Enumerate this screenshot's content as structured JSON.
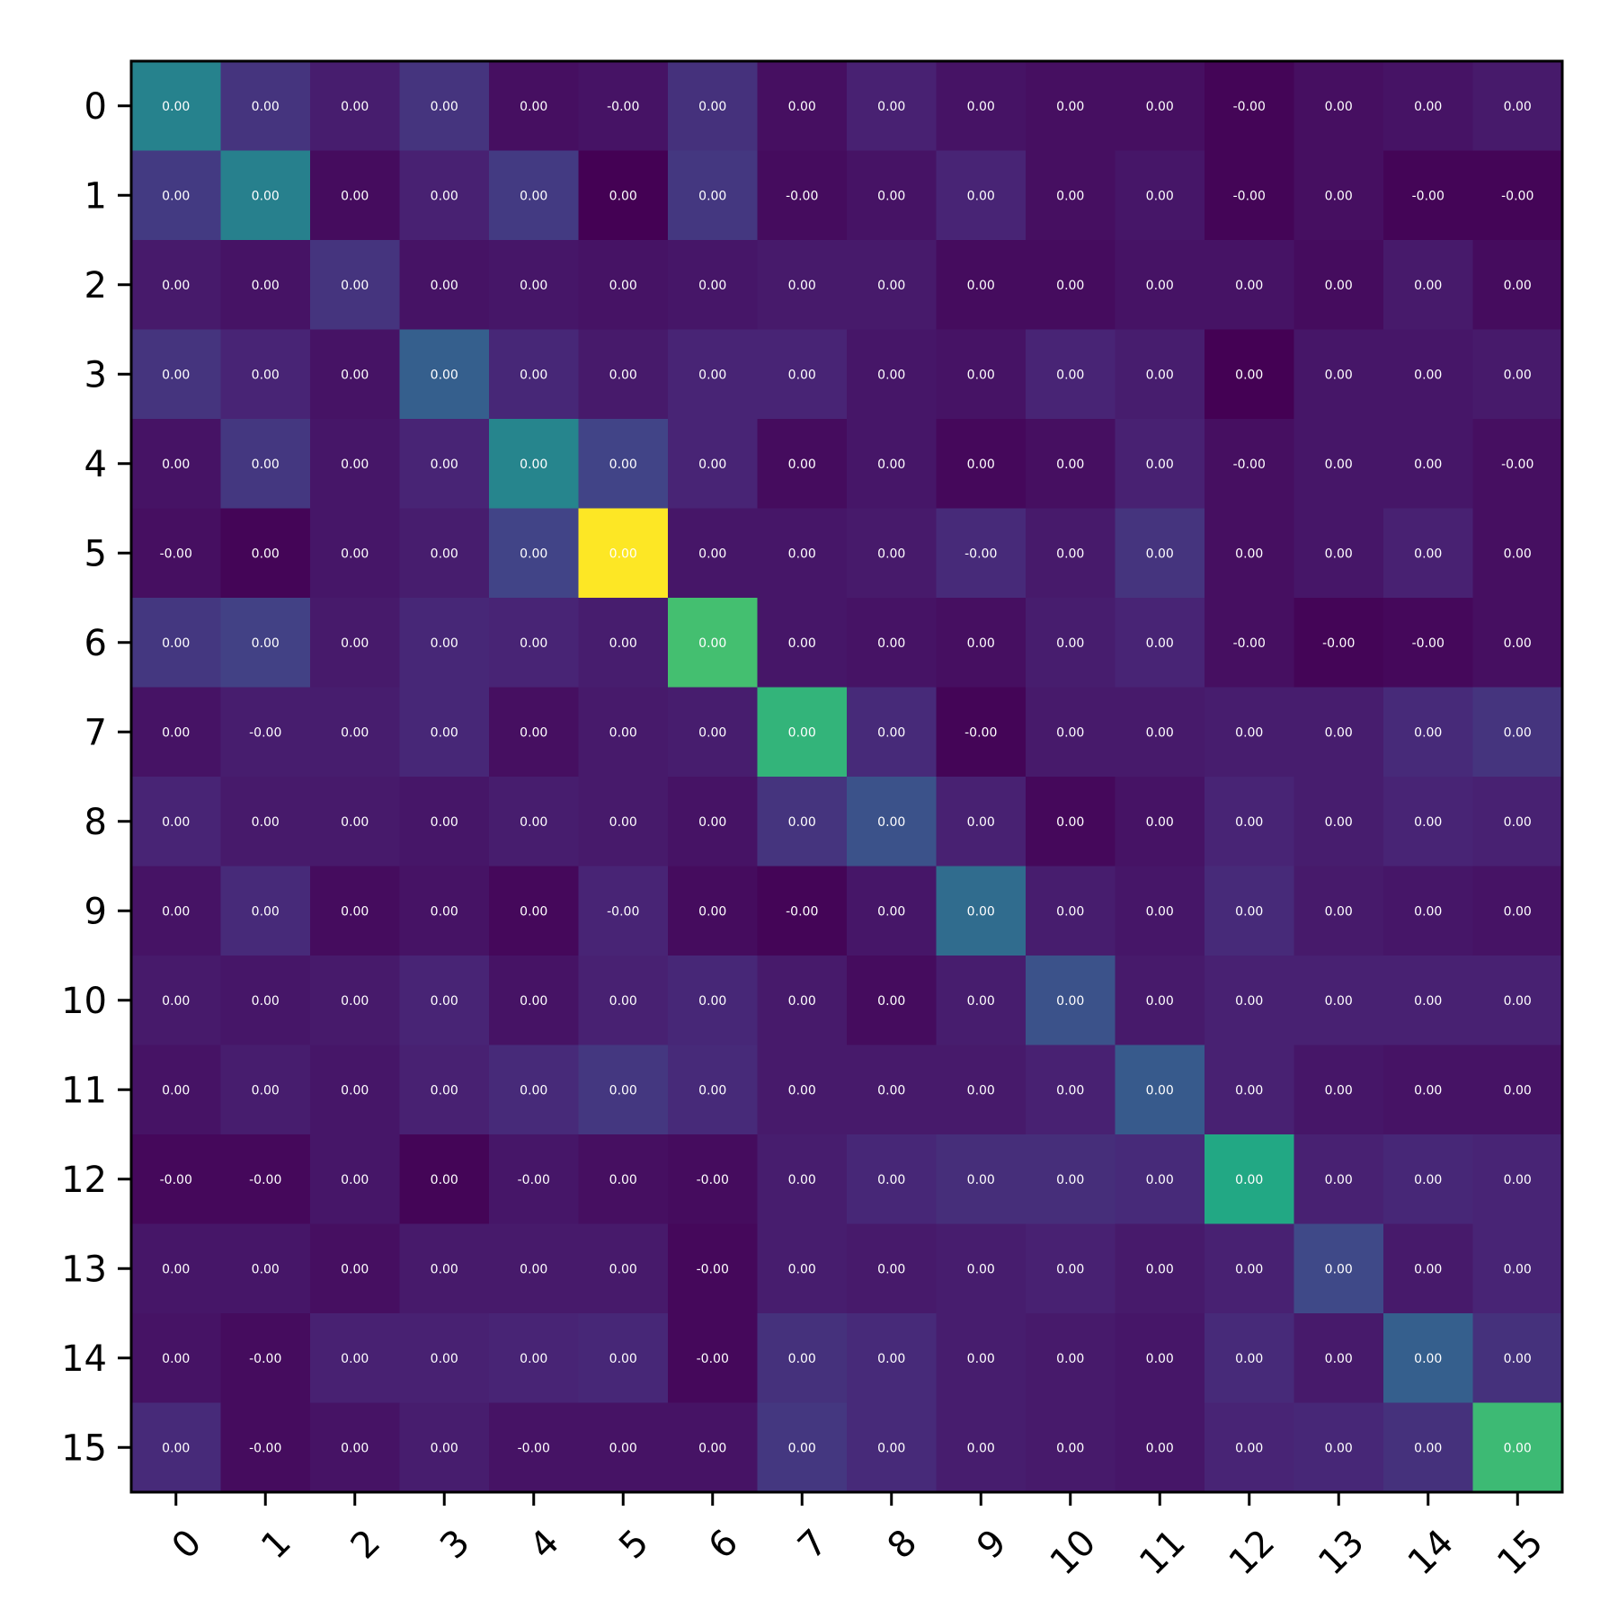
{
  "chart_data": {
    "type": "heatmap",
    "title": "",
    "xlabel": "",
    "ylabel": "",
    "colormap": "viridis",
    "x_categories": [
      "0",
      "1",
      "2",
      "3",
      "4",
      "5",
      "6",
      "7",
      "8",
      "9",
      "10",
      "11",
      "12",
      "13",
      "14",
      "15"
    ],
    "y_categories": [
      "0",
      "1",
      "2",
      "3",
      "4",
      "5",
      "6",
      "7",
      "8",
      "9",
      "10",
      "11",
      "12",
      "13",
      "14",
      "15"
    ],
    "x_tick_rotation_deg": 45,
    "grid": false,
    "legend": "none",
    "color_intensity": [
      [
        0.44,
        0.15,
        0.08,
        0.15,
        0.04,
        0.05,
        0.14,
        0.04,
        0.09,
        0.05,
        0.04,
        0.04,
        0.01,
        0.04,
        0.05,
        0.07
      ],
      [
        0.17,
        0.43,
        0.03,
        0.09,
        0.17,
        0.0,
        0.16,
        0.03,
        0.05,
        0.1,
        0.04,
        0.06,
        0.01,
        0.04,
        0.01,
        0.01
      ],
      [
        0.07,
        0.05,
        0.15,
        0.05,
        0.06,
        0.05,
        0.06,
        0.07,
        0.07,
        0.03,
        0.03,
        0.05,
        0.05,
        0.03,
        0.07,
        0.03
      ],
      [
        0.15,
        0.1,
        0.05,
        0.3,
        0.11,
        0.07,
        0.1,
        0.1,
        0.06,
        0.05,
        0.1,
        0.08,
        0.0,
        0.06,
        0.06,
        0.07
      ],
      [
        0.05,
        0.16,
        0.06,
        0.1,
        0.45,
        0.2,
        0.1,
        0.03,
        0.06,
        0.02,
        0.04,
        0.09,
        0.04,
        0.06,
        0.06,
        0.04
      ],
      [
        0.04,
        0.01,
        0.06,
        0.08,
        0.2,
        1.0,
        0.06,
        0.06,
        0.07,
        0.12,
        0.07,
        0.15,
        0.04,
        0.06,
        0.09,
        0.04
      ],
      [
        0.16,
        0.19,
        0.07,
        0.11,
        0.1,
        0.08,
        0.7,
        0.06,
        0.05,
        0.04,
        0.08,
        0.1,
        0.04,
        0.01,
        0.02,
        0.04
      ],
      [
        0.05,
        0.08,
        0.08,
        0.11,
        0.04,
        0.07,
        0.08,
        0.65,
        0.12,
        0.01,
        0.07,
        0.07,
        0.08,
        0.08,
        0.12,
        0.15
      ],
      [
        0.1,
        0.07,
        0.07,
        0.06,
        0.08,
        0.07,
        0.05,
        0.15,
        0.25,
        0.09,
        0.02,
        0.05,
        0.1,
        0.08,
        0.1,
        0.09
      ],
      [
        0.05,
        0.12,
        0.03,
        0.05,
        0.02,
        0.1,
        0.03,
        0.01,
        0.06,
        0.35,
        0.08,
        0.06,
        0.12,
        0.07,
        0.06,
        0.05
      ],
      [
        0.07,
        0.06,
        0.07,
        0.1,
        0.05,
        0.09,
        0.11,
        0.07,
        0.03,
        0.08,
        0.25,
        0.07,
        0.09,
        0.09,
        0.09,
        0.09
      ],
      [
        0.05,
        0.08,
        0.06,
        0.09,
        0.12,
        0.16,
        0.12,
        0.07,
        0.07,
        0.07,
        0.09,
        0.28,
        0.09,
        0.06,
        0.05,
        0.05
      ],
      [
        0.02,
        0.02,
        0.06,
        0.01,
        0.06,
        0.04,
        0.03,
        0.08,
        0.11,
        0.13,
        0.13,
        0.12,
        0.6,
        0.09,
        0.11,
        0.1
      ],
      [
        0.06,
        0.06,
        0.04,
        0.07,
        0.07,
        0.07,
        0.02,
        0.08,
        0.07,
        0.08,
        0.09,
        0.07,
        0.09,
        0.22,
        0.07,
        0.1
      ],
      [
        0.05,
        0.03,
        0.09,
        0.09,
        0.1,
        0.11,
        0.02,
        0.14,
        0.12,
        0.08,
        0.07,
        0.06,
        0.12,
        0.07,
        0.3,
        0.14
      ],
      [
        0.12,
        0.03,
        0.05,
        0.08,
        0.05,
        0.05,
        0.05,
        0.16,
        0.12,
        0.08,
        0.07,
        0.06,
        0.1,
        0.11,
        0.14,
        0.68
      ]
    ],
    "cell_labels": [
      [
        "0.00",
        "0.00",
        "0.00",
        "0.00",
        "0.00",
        "-0.00",
        "0.00",
        "0.00",
        "0.00",
        "0.00",
        "0.00",
        "0.00",
        "-0.00",
        "0.00",
        "0.00",
        "0.00"
      ],
      [
        "0.00",
        "0.00",
        "0.00",
        "0.00",
        "0.00",
        "0.00",
        "0.00",
        "-0.00",
        "0.00",
        "0.00",
        "0.00",
        "0.00",
        "-0.00",
        "0.00",
        "-0.00",
        "-0.00"
      ],
      [
        "0.00",
        "0.00",
        "0.00",
        "0.00",
        "0.00",
        "0.00",
        "0.00",
        "0.00",
        "0.00",
        "0.00",
        "0.00",
        "0.00",
        "0.00",
        "0.00",
        "0.00",
        "0.00"
      ],
      [
        "0.00",
        "0.00",
        "0.00",
        "0.00",
        "0.00",
        "0.00",
        "0.00",
        "0.00",
        "0.00",
        "0.00",
        "0.00",
        "0.00",
        "0.00",
        "0.00",
        "0.00",
        "0.00"
      ],
      [
        "0.00",
        "0.00",
        "0.00",
        "0.00",
        "0.00",
        "0.00",
        "0.00",
        "0.00",
        "0.00",
        "0.00",
        "0.00",
        "0.00",
        "-0.00",
        "0.00",
        "0.00",
        "-0.00"
      ],
      [
        "-0.00",
        "0.00",
        "0.00",
        "0.00",
        "0.00",
        "0.00",
        "0.00",
        "0.00",
        "0.00",
        "-0.00",
        "0.00",
        "0.00",
        "0.00",
        "0.00",
        "0.00",
        "0.00"
      ],
      [
        "0.00",
        "0.00",
        "0.00",
        "0.00",
        "0.00",
        "0.00",
        "0.00",
        "0.00",
        "0.00",
        "0.00",
        "0.00",
        "0.00",
        "-0.00",
        "-0.00",
        "-0.00",
        "0.00"
      ],
      [
        "0.00",
        "-0.00",
        "0.00",
        "0.00",
        "0.00",
        "0.00",
        "0.00",
        "0.00",
        "0.00",
        "-0.00",
        "0.00",
        "0.00",
        "0.00",
        "0.00",
        "0.00",
        "0.00"
      ],
      [
        "0.00",
        "0.00",
        "0.00",
        "0.00",
        "0.00",
        "0.00",
        "0.00",
        "0.00",
        "0.00",
        "0.00",
        "0.00",
        "0.00",
        "0.00",
        "0.00",
        "0.00",
        "0.00"
      ],
      [
        "0.00",
        "0.00",
        "0.00",
        "0.00",
        "0.00",
        "-0.00",
        "0.00",
        "-0.00",
        "0.00",
        "0.00",
        "0.00",
        "0.00",
        "0.00",
        "0.00",
        "0.00",
        "0.00"
      ],
      [
        "0.00",
        "0.00",
        "0.00",
        "0.00",
        "0.00",
        "0.00",
        "0.00",
        "0.00",
        "0.00",
        "0.00",
        "0.00",
        "0.00",
        "0.00",
        "0.00",
        "0.00",
        "0.00"
      ],
      [
        "0.00",
        "0.00",
        "0.00",
        "0.00",
        "0.00",
        "0.00",
        "0.00",
        "0.00",
        "0.00",
        "0.00",
        "0.00",
        "0.00",
        "0.00",
        "0.00",
        "0.00",
        "0.00"
      ],
      [
        "-0.00",
        "-0.00",
        "0.00",
        "0.00",
        "-0.00",
        "0.00",
        "-0.00",
        "0.00",
        "0.00",
        "0.00",
        "0.00",
        "0.00",
        "0.00",
        "0.00",
        "0.00",
        "0.00"
      ],
      [
        "0.00",
        "0.00",
        "0.00",
        "0.00",
        "0.00",
        "0.00",
        "-0.00",
        "0.00",
        "0.00",
        "0.00",
        "0.00",
        "0.00",
        "0.00",
        "0.00",
        "0.00",
        "0.00"
      ],
      [
        "0.00",
        "-0.00",
        "0.00",
        "0.00",
        "0.00",
        "0.00",
        "-0.00",
        "0.00",
        "0.00",
        "0.00",
        "0.00",
        "0.00",
        "0.00",
        "0.00",
        "0.00",
        "0.00"
      ],
      [
        "0.00",
        "-0.00",
        "0.00",
        "0.00",
        "-0.00",
        "0.00",
        "0.00",
        "0.00",
        "0.00",
        "0.00",
        "0.00",
        "0.00",
        "0.00",
        "0.00",
        "0.00",
        "0.00"
      ]
    ]
  }
}
